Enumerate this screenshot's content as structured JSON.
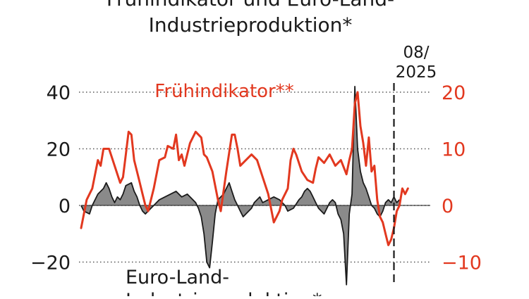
{
  "header": {
    "title_line1": "Frühindikator und Euro-Land-",
    "title_line2": "Industrieproduktion*"
  },
  "marker": {
    "line1": "08/",
    "line2": "2025"
  },
  "colors": {
    "orange": "#e2381f",
    "black": "#1a1a1a",
    "fill": "#8a8a8a",
    "grid": "#555555"
  },
  "chart_data": {
    "type": "line",
    "left_axis": {
      "ticks": [
        40,
        20,
        0,
        -20
      ],
      "tick_labels": [
        "40",
        "20",
        "0",
        "−20"
      ],
      "ylim": [
        -30,
        42
      ]
    },
    "right_axis": {
      "ticks": [
        20,
        10,
        0,
        -10
      ],
      "tick_labels": [
        "20",
        "10",
        "0",
        "−10"
      ],
      "ylim": [
        -15,
        21
      ]
    },
    "x_range": [
      1,
      126
    ],
    "marker_x": 113,
    "series": [
      {
        "name": "Frühindikator**",
        "axis": "right",
        "x": [
          1,
          3,
          5,
          7,
          8,
          9,
          11,
          13,
          15,
          16,
          17,
          18,
          19,
          20,
          21,
          22,
          23,
          24,
          25,
          27,
          29,
          31,
          32,
          34,
          35,
          36,
          37,
          38,
          40,
          42,
          44,
          45,
          46,
          48,
          50,
          51,
          53,
          55,
          56,
          57,
          58,
          60,
          62,
          64,
          66,
          68,
          70,
          71,
          72,
          73,
          75,
          76,
          77,
          78,
          80,
          82,
          84,
          85,
          86,
          88,
          90,
          92,
          94,
          96,
          97,
          98,
          99,
          100,
          101,
          102,
          103,
          104,
          105,
          106,
          107,
          108,
          109,
          110,
          111,
          112,
          113,
          114,
          115,
          116,
          117,
          118
        ],
        "y": [
          -4,
          1,
          3,
          8,
          7,
          10,
          10,
          7,
          4,
          5,
          9,
          13,
          12.5,
          8,
          6,
          4,
          2,
          0,
          -1,
          3,
          8,
          8.5,
          10.5,
          10,
          12.5,
          8,
          9,
          7,
          11,
          13,
          12,
          9,
          8.5,
          6,
          1,
          -1,
          6,
          12.5,
          12.5,
          10,
          7,
          8,
          9,
          8,
          5,
          2,
          -3,
          -2,
          -1,
          1,
          3,
          8,
          10,
          9,
          6,
          4.5,
          4,
          6.5,
          8.5,
          7.5,
          9,
          7,
          8,
          5.5,
          8,
          10,
          18,
          20,
          14,
          11,
          7,
          12,
          6,
          7,
          1,
          -2,
          -3,
          -5,
          -7,
          -6,
          -4,
          -1,
          0,
          3,
          2,
          3
        ]
      },
      {
        "name": "Euro-Land-Industrieproduktion*",
        "axis": "left",
        "x": [
          1,
          2,
          4,
          5,
          7,
          9,
          10,
          11,
          12,
          13,
          14,
          15,
          16,
          17,
          19,
          20,
          21,
          22,
          23,
          24,
          25,
          26,
          27,
          29,
          31,
          33,
          35,
          37,
          39,
          41,
          42,
          43,
          44,
          45,
          46,
          47,
          48,
          49,
          50,
          52,
          53,
          54,
          55,
          56,
          57,
          58,
          59,
          60,
          62,
          63,
          64,
          65,
          66,
          68,
          70,
          72,
          73,
          74,
          75,
          77,
          79,
          80,
          81,
          82,
          83,
          84,
          85,
          86,
          87,
          88,
          89,
          90,
          91,
          92,
          93,
          94,
          95,
          96,
          97,
          98,
          99,
          100,
          101,
          102,
          103,
          104,
          105,
          106,
          107,
          108,
          109,
          110,
          111,
          112,
          113,
          114,
          115
        ],
        "y": [
          0,
          -2,
          -3,
          0,
          4,
          6,
          8,
          6,
          3,
          1,
          3,
          2,
          4,
          7,
          8,
          5,
          3,
          0,
          -2,
          -3,
          -2,
          -1,
          0,
          2,
          3,
          4,
          5,
          3,
          4,
          2,
          1,
          -1,
          -4,
          -10,
          -20,
          -22,
          -13,
          -3,
          2,
          4,
          6,
          8,
          5,
          2,
          0,
          -2,
          -4,
          -3,
          -1,
          1,
          2,
          3,
          1,
          2,
          3,
          2,
          1,
          0,
          -2,
          -1,
          2,
          3,
          5,
          6,
          5,
          3,
          1,
          -1,
          -2,
          -3,
          -1,
          1,
          2,
          1,
          -3,
          -5,
          -10,
          -28,
          -3,
          4,
          42,
          20,
          12,
          8,
          6,
          3,
          0,
          -1,
          -3,
          -4,
          -2,
          1,
          2,
          1,
          3,
          1,
          2
        ]
      }
    ]
  },
  "legend": {
    "orange_label": "Frühindikator**",
    "black_label_line1": "Euro-Land-",
    "black_label_line2": "Industrieproduktion*"
  }
}
